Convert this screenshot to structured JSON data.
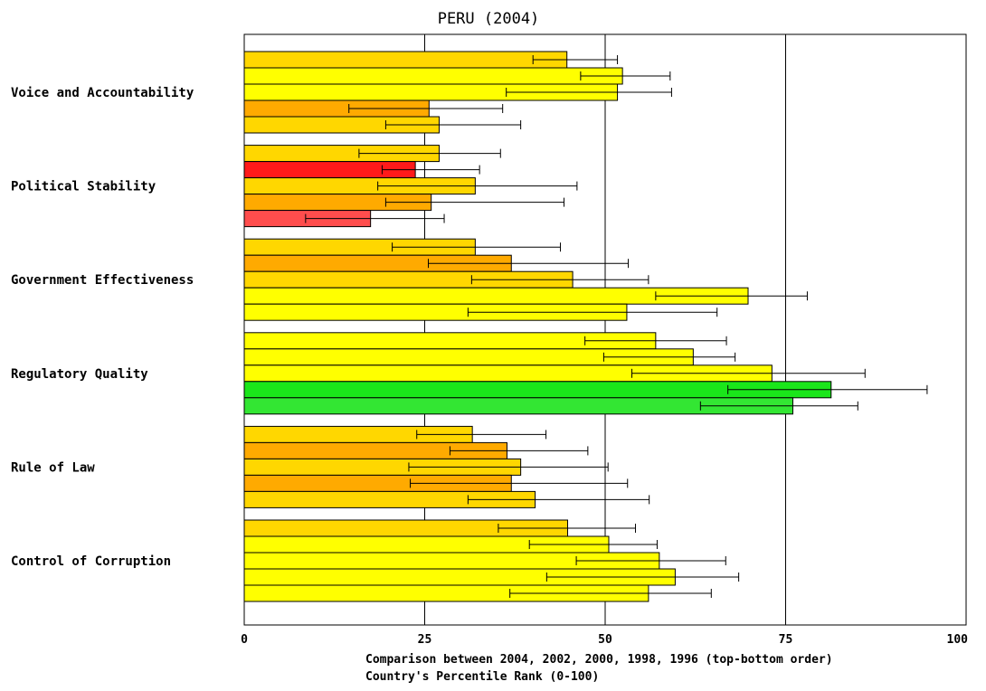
{
  "chart_data": {
    "type": "bar",
    "orientation": "horizontal",
    "title": "PERU (2004)",
    "xlabel_line1": "Comparison between 2004, 2002, 2000, 1998, 1996 (top-bottom order)",
    "xlabel_line2": "Country's Percentile Rank (0-100)",
    "xlim": [
      0,
      100
    ],
    "xticks": [
      "0",
      "25",
      "50",
      "75",
      "100"
    ],
    "gridlines_at": [
      25,
      50,
      75
    ],
    "years": [
      "2004",
      "2002",
      "2000",
      "1998",
      "1996"
    ],
    "categories": [
      "Voice and Accountability",
      "Political Stability",
      "Government Effectiveness",
      "Regulatory Quality",
      "Rule of Law",
      "Control of Corruption"
    ],
    "bars": [
      [
        {
          "value": 44.7,
          "low": 40.0,
          "high": 51.7,
          "color": "#ffd700"
        },
        {
          "value": 52.4,
          "low": 46.6,
          "high": 59.0,
          "color": "#ffff00"
        },
        {
          "value": 51.7,
          "low": 36.3,
          "high": 59.2,
          "color": "#ffff00"
        },
        {
          "value": 25.6,
          "low": 14.5,
          "high": 35.8,
          "color": "#ffaa00"
        },
        {
          "value": 27.0,
          "low": 19.6,
          "high": 38.3,
          "color": "#ffd700"
        }
      ],
      [
        {
          "value": 27.0,
          "low": 15.9,
          "high": 35.5,
          "color": "#ffd700"
        },
        {
          "value": 23.7,
          "low": 19.1,
          "high": 32.6,
          "color": "#ff1a1a"
        },
        {
          "value": 32.0,
          "low": 18.5,
          "high": 46.1,
          "color": "#ffd700"
        },
        {
          "value": 25.9,
          "low": 19.6,
          "high": 44.3,
          "color": "#ffaa00"
        },
        {
          "value": 17.5,
          "low": 8.5,
          "high": 27.7,
          "color": "#ff4d4d"
        }
      ],
      [
        {
          "value": 32.0,
          "low": 20.5,
          "high": 43.8,
          "color": "#ffd700"
        },
        {
          "value": 37.0,
          "low": 25.5,
          "high": 53.2,
          "color": "#ffaa00"
        },
        {
          "value": 45.5,
          "low": 31.5,
          "high": 56.0,
          "color": "#ffd700"
        },
        {
          "value": 69.8,
          "low": 57.0,
          "high": 78.0,
          "color": "#ffff00"
        },
        {
          "value": 53.0,
          "low": 31.0,
          "high": 65.5,
          "color": "#ffff00"
        }
      ],
      [
        {
          "value": 57.0,
          "low": 47.2,
          "high": 66.8,
          "color": "#ffff00"
        },
        {
          "value": 62.2,
          "low": 49.8,
          "high": 68.0,
          "color": "#ffff00"
        },
        {
          "value": 73.1,
          "low": 53.7,
          "high": 86.0,
          "color": "#ffff00"
        },
        {
          "value": 81.3,
          "low": 67.0,
          "high": 94.6,
          "color": "#1ae61a"
        },
        {
          "value": 76.0,
          "low": 63.2,
          "high": 85.0,
          "color": "#33e633"
        }
      ],
      [
        {
          "value": 31.6,
          "low": 23.9,
          "high": 41.8,
          "color": "#ffd700"
        },
        {
          "value": 36.4,
          "low": 28.5,
          "high": 47.6,
          "color": "#ffaa00"
        },
        {
          "value": 38.3,
          "low": 22.8,
          "high": 50.4,
          "color": "#ffd700"
        },
        {
          "value": 37.0,
          "low": 23.0,
          "high": 53.1,
          "color": "#ffaa00"
        },
        {
          "value": 40.3,
          "low": 31.0,
          "high": 56.1,
          "color": "#ffd700"
        }
      ],
      [
        {
          "value": 44.8,
          "low": 35.2,
          "high": 54.2,
          "color": "#ffd700"
        },
        {
          "value": 50.5,
          "low": 39.5,
          "high": 57.2,
          "color": "#ffff00"
        },
        {
          "value": 57.5,
          "low": 46.0,
          "high": 66.7,
          "color": "#ffff00"
        },
        {
          "value": 59.7,
          "low": 41.9,
          "high": 68.5,
          "color": "#ffff00"
        },
        {
          "value": 56.0,
          "low": 36.8,
          "high": 64.7,
          "color": "#ffff00"
        }
      ]
    ]
  }
}
